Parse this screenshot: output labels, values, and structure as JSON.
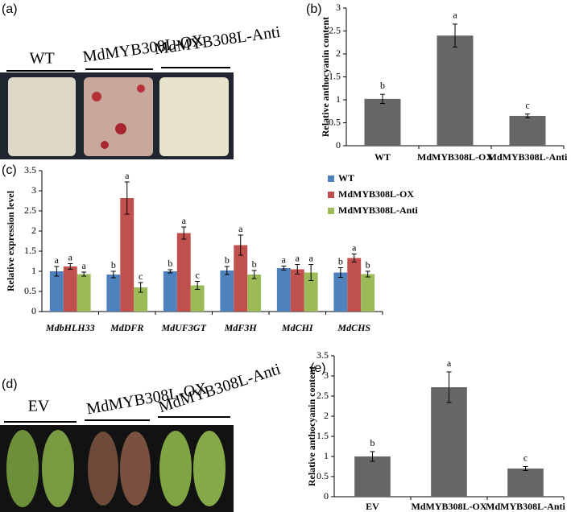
{
  "photos": [
    {
      "panel": "(a)",
      "samples": [
        "WT",
        "MdMYB308L-OX",
        "MdMYB308L-Anti"
      ]
    },
    {
      "panel": "(d)",
      "samples": [
        "EV",
        "MdMYB308L-OX",
        "MdMYB308L-Anti"
      ]
    }
  ],
  "chart_data": [
    {
      "type": "bar",
      "panel": "(b)",
      "y_label": "Relative anthocyanin content",
      "categories": [
        "WT",
        "MdMYB308L-OX",
        "MdMYB308L-Anti"
      ],
      "values": [
        1.02,
        2.4,
        0.65
      ],
      "errors": [
        0.1,
        0.25,
        0.04
      ],
      "letters": [
        "b",
        "a",
        "c"
      ],
      "color": "#666666",
      "ylim": [
        0,
        3
      ],
      "yticks": [
        0,
        0.5,
        1,
        1.5,
        2,
        2.5,
        3
      ]
    },
    {
      "type": "bar",
      "panel": "(c)",
      "y_label": "Relative expression level",
      "categories": [
        "MdbHLH33",
        "MdDFR",
        "MdUF3GT",
        "MdF3H",
        "MdCHI",
        "MdCHS"
      ],
      "series": [
        {
          "name": "WT",
          "color": "#4f81bd",
          "values": [
            1.0,
            0.92,
            1.0,
            1.02,
            1.08,
            0.97
          ],
          "errors": [
            0.12,
            0.08,
            0.04,
            0.1,
            0.05,
            0.12
          ],
          "letters": [
            "a",
            "b",
            "b",
            "b",
            "a",
            "b"
          ]
        },
        {
          "name": "MdMYB308L-OX",
          "color": "#c0504d",
          "values": [
            1.12,
            2.82,
            1.95,
            1.65,
            1.05,
            1.33
          ],
          "errors": [
            0.07,
            0.4,
            0.15,
            0.25,
            0.12,
            0.1
          ],
          "letters": [
            "a",
            "a",
            "a",
            "a",
            "a",
            "a"
          ]
        },
        {
          "name": "MdMYB308L-Anti",
          "color": "#9bbb59",
          "values": [
            0.93,
            0.6,
            0.65,
            0.92,
            0.97,
            0.93
          ],
          "errors": [
            0.05,
            0.12,
            0.1,
            0.1,
            0.2,
            0.07
          ],
          "letters": [
            "a",
            "c",
            "c",
            "b",
            "a",
            "b"
          ]
        }
      ],
      "ylim": [
        0,
        3.5
      ],
      "yticks": [
        0,
        0.5,
        1,
        1.5,
        2,
        2.5,
        3,
        3.5
      ],
      "legend": "upper right"
    },
    {
      "type": "bar",
      "panel": "(e)",
      "y_label": "Relative anthocyanin content",
      "categories": [
        "EV",
        "MdMYB308L-OX",
        "MdMYB308L-Anti"
      ],
      "values": [
        1.0,
        2.72,
        0.7
      ],
      "errors": [
        0.12,
        0.38,
        0.05
      ],
      "letters": [
        "b",
        "a",
        "c"
      ],
      "color": "#666666",
      "ylim": [
        0,
        3.5
      ],
      "yticks": [
        0,
        0.5,
        1,
        1.5,
        2,
        2.5,
        3,
        3.5
      ]
    }
  ]
}
